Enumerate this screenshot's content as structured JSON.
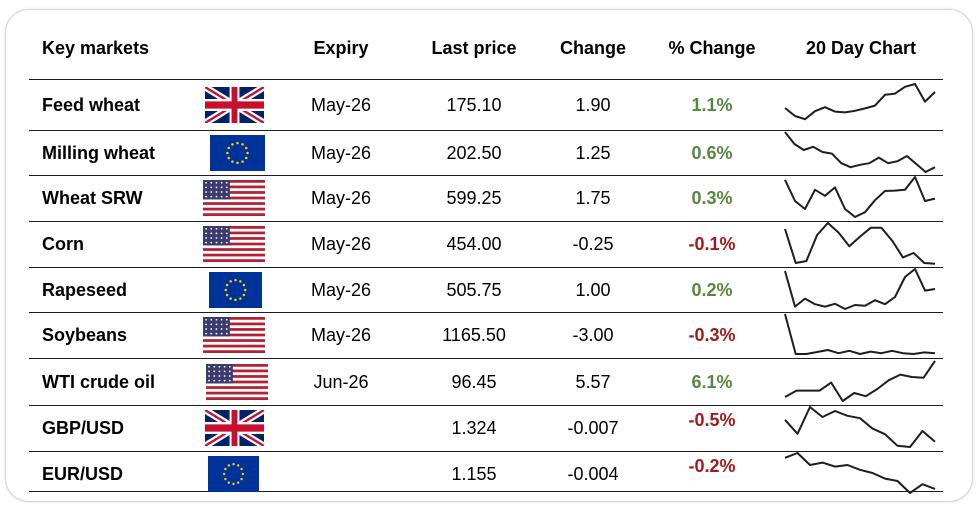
{
  "header": {
    "key_markets": "Key markets",
    "expiry": "Expiry",
    "last_price": "Last price",
    "change": "Change",
    "pct_change": "% Change",
    "chart": "20 Day Chart"
  },
  "colors": {
    "positive": "#55893a",
    "negative": "#a01c1c",
    "line": "#1e1e1e"
  },
  "rows": [
    {
      "name": "Feed wheat",
      "flag": "uk-flag-icon",
      "expiry": "May-26",
      "last": "175.10",
      "change": "1.90",
      "pct": "1.1%",
      "dir": "pos",
      "trend": [
        0.4,
        0.2,
        0.12,
        0.32,
        0.42,
        0.31,
        0.29,
        0.33,
        0.39,
        0.46,
        0.73,
        0.76,
        0.93,
        1.0,
        0.56,
        0.8
      ]
    },
    {
      "name": "Milling wheat",
      "flag": "eu-flag-icon",
      "expiry": "May-26",
      "last": "202.50",
      "change": "1.25",
      "pct": "0.6%",
      "dir": "pos",
      "trend": [
        1.0,
        0.7,
        0.55,
        0.63,
        0.5,
        0.46,
        0.22,
        0.12,
        0.18,
        0.22,
        0.36,
        0.22,
        0.27,
        0.4,
        0.2,
        0.0,
        0.12
      ]
    },
    {
      "name": "Wheat SRW",
      "flag": "us-flag-icon",
      "expiry": "May-26",
      "last": "599.25",
      "change": "1.75",
      "pct": "0.3%",
      "dir": "pos",
      "trend": [
        0.93,
        0.4,
        0.2,
        0.68,
        0.53,
        0.74,
        0.2,
        0.0,
        0.12,
        0.42,
        0.65,
        0.66,
        0.68,
        1.0,
        0.4,
        0.46
      ]
    },
    {
      "name": "Corn",
      "flag": "us-flag-icon",
      "expiry": "May-26",
      "last": "454.00",
      "change": "-0.25",
      "pct": "-0.1%",
      "dir": "neg",
      "trend": [
        0.85,
        0.0,
        0.05,
        0.7,
        1.0,
        0.76,
        0.42,
        0.66,
        0.88,
        0.88,
        0.56,
        0.14,
        0.25,
        0.0,
        -0.02
      ]
    },
    {
      "name": "Rapeseed",
      "flag": "eu-flag-icon",
      "expiry": "May-26",
      "last": "505.75",
      "change": "1.00",
      "pct": "0.2%",
      "dir": "pos",
      "trend": [
        0.95,
        0.06,
        0.26,
        0.12,
        0.06,
        0.13,
        0.0,
        0.1,
        0.08,
        0.22,
        0.12,
        0.3,
        0.8,
        1.0,
        0.46,
        0.5
      ]
    },
    {
      "name": "Soybeans",
      "flag": "us-flag-icon",
      "expiry": "May-26",
      "last": "1165.50",
      "change": "-3.00",
      "pct": "-0.3%",
      "dir": "neg",
      "trend": [
        1.0,
        0.0,
        0.0,
        0.05,
        0.1,
        0.02,
        0.08,
        0.0,
        0.06,
        0.02,
        0.08,
        0.02,
        0.0,
        0.04,
        0.02
      ]
    },
    {
      "name": "WTI crude oil",
      "flag": "us-flag-icon",
      "expiry": "Jun-26",
      "last": "96.45",
      "change": "5.57",
      "pct": "6.1%",
      "dir": "pos",
      "trend": [
        0.1,
        0.26,
        0.26,
        0.26,
        0.46,
        0.0,
        0.2,
        0.12,
        0.3,
        0.52,
        0.66,
        0.6,
        0.58,
        1.0
      ]
    },
    {
      "name": "GBP/USD",
      "flag": "uk-flag-icon",
      "expiry": "",
      "last": "1.324",
      "change": "-0.007",
      "pct": "-0.5%",
      "dir": "neg",
      "trend": [
        0.68,
        0.33,
        1.0,
        0.75,
        0.9,
        0.78,
        0.72,
        0.46,
        0.32,
        0.03,
        0.0,
        0.4,
        0.13
      ]
    },
    {
      "name": "EUR/USD",
      "flag": "eu-flag-icon",
      "expiry": "",
      "last": "1.155",
      "change": "-0.004",
      "pct": "-0.2%",
      "dir": "neg",
      "trend": [
        0.88,
        1.0,
        0.7,
        0.76,
        0.66,
        0.7,
        0.58,
        0.5,
        0.36,
        0.3,
        0.0,
        0.22,
        0.1
      ]
    }
  ]
}
